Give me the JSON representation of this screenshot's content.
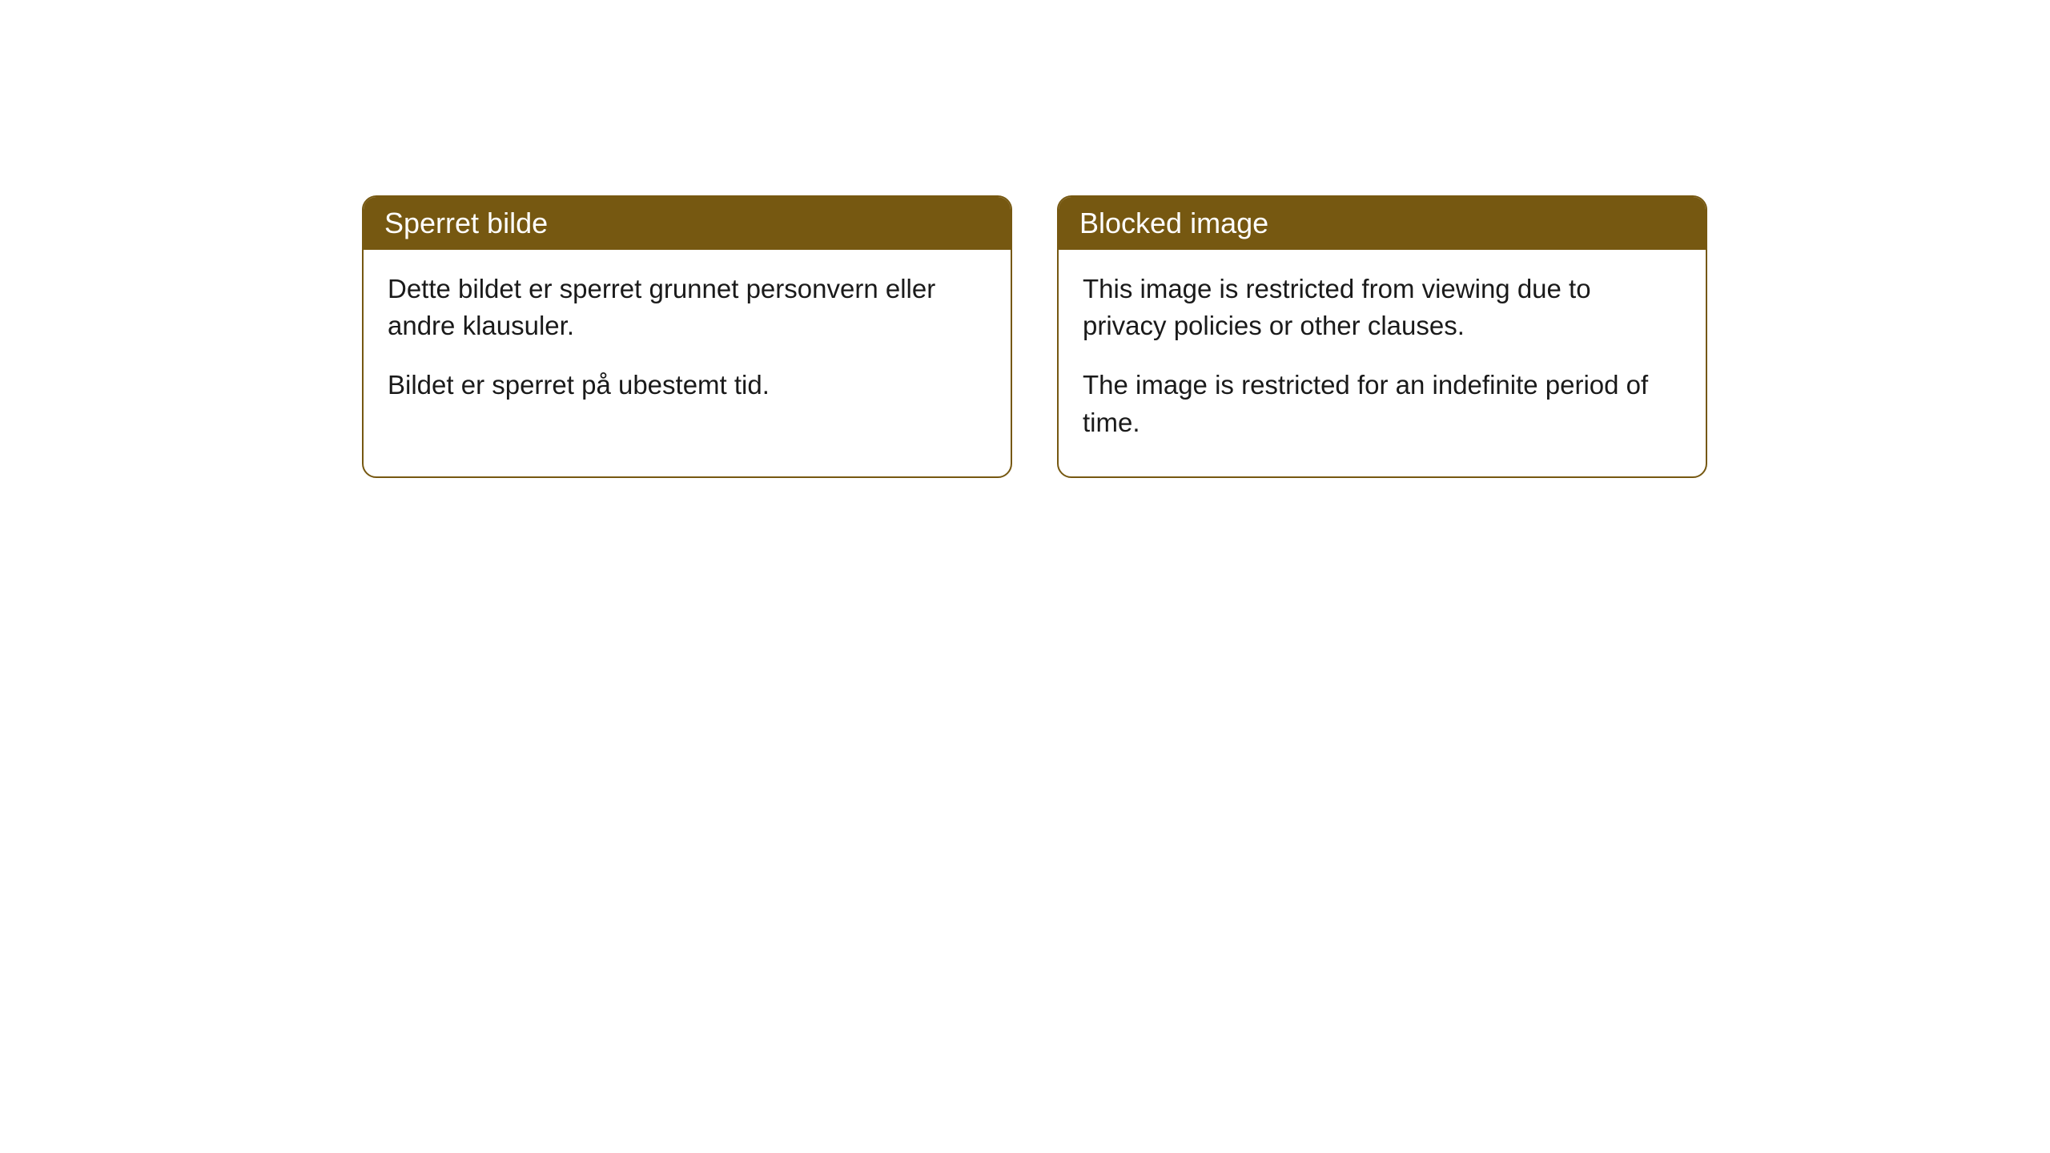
{
  "cards": [
    {
      "title": "Sperret bilde",
      "paragraph1": "Dette bildet er sperret grunnet personvern eller andre klausuler.",
      "paragraph2": "Bildet er sperret på ubestemt tid."
    },
    {
      "title": "Blocked image",
      "paragraph1": "This image is restricted from viewing due to privacy policies or other clauses.",
      "paragraph2": "The image is restricted for an indefinite period of time."
    }
  ],
  "styling": {
    "header_background": "#765811",
    "header_text_color": "#ffffff",
    "border_color": "#765811",
    "body_background": "#ffffff",
    "body_text_color": "#1a1a1a",
    "border_radius": 18,
    "header_fontsize": 36,
    "body_fontsize": 33
  }
}
